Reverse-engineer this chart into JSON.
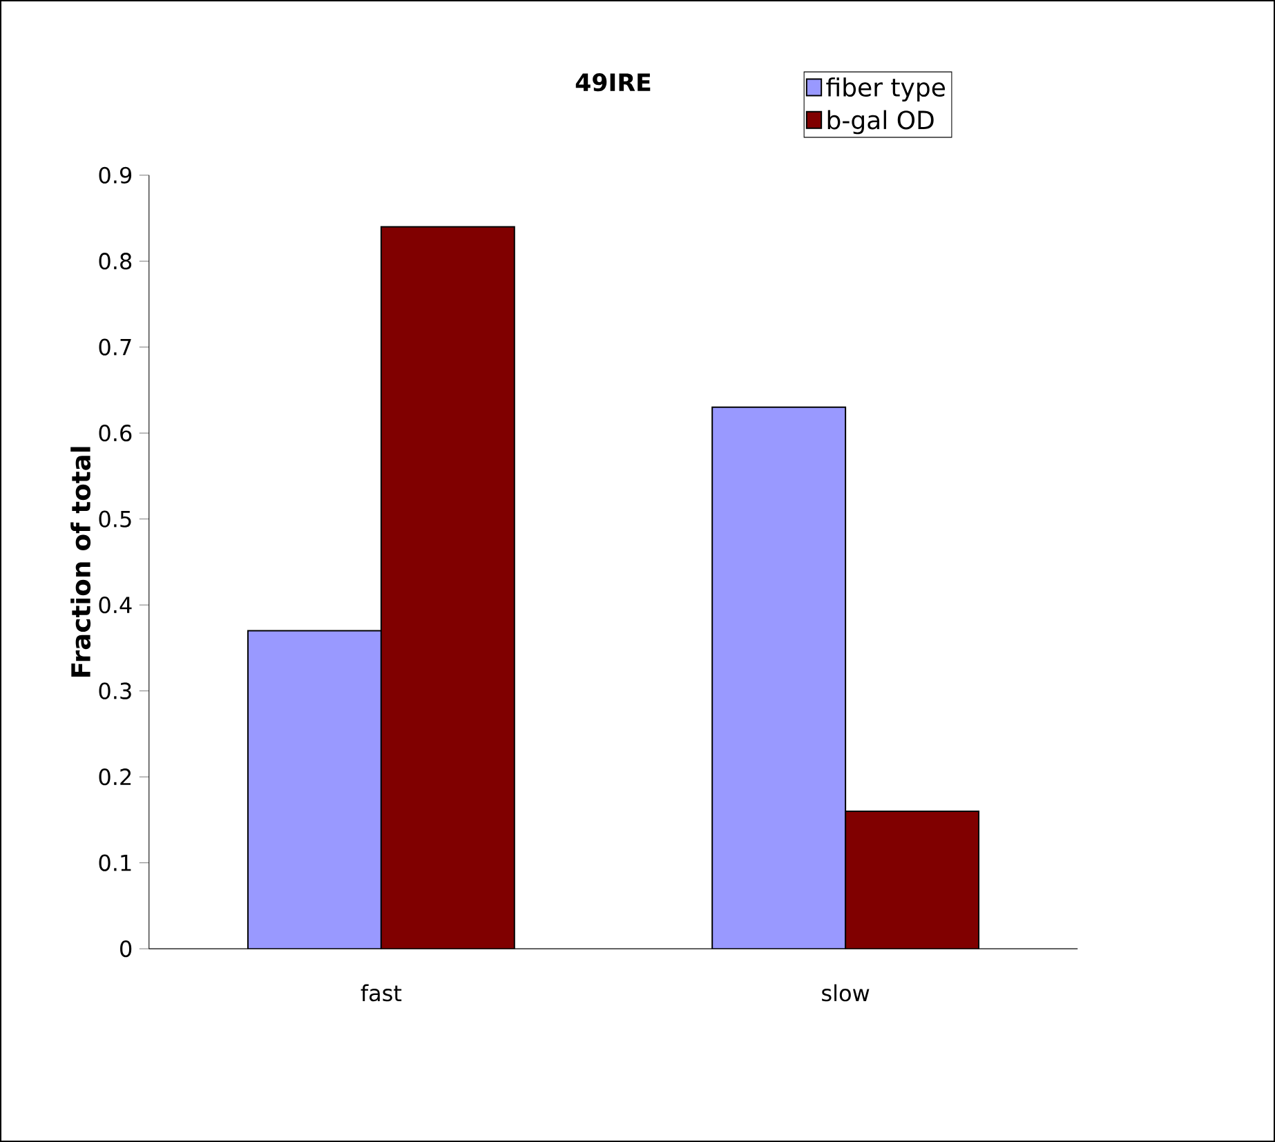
{
  "chart_data": {
    "type": "bar",
    "title": "49IRE",
    "ylabel": "Fraction of total",
    "categories": [
      "fast",
      "slow"
    ],
    "series": [
      {
        "name": "fiber type",
        "color": "#9999ff",
        "values": [
          0.37,
          0.63
        ]
      },
      {
        "name": "b-gal OD",
        "color": "#800000",
        "values": [
          0.84,
          0.16
        ]
      }
    ],
    "ylim": [
      0,
      0.9
    ],
    "yticks": [
      0,
      0.1,
      0.2,
      0.3,
      0.4,
      0.5,
      0.6,
      0.7,
      0.8,
      0.9
    ],
    "legend": "top right"
  }
}
